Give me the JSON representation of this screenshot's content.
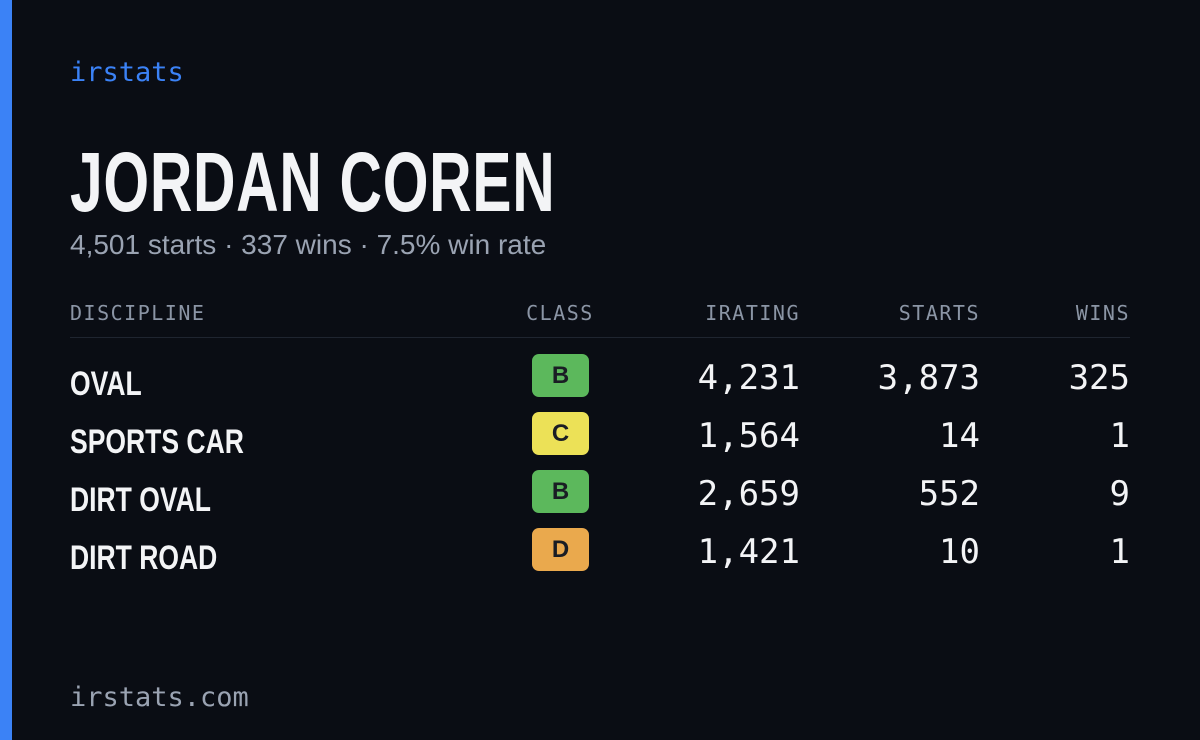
{
  "header": {
    "brand": "irstats",
    "name": "JORDAN COREN",
    "summary": "4,501 starts · 337 wins · 7.5% win rate"
  },
  "table": {
    "columns": [
      "DISCIPLINE",
      "CLASS",
      "IRATING",
      "STARTS",
      "WINS"
    ],
    "rows": [
      {
        "discipline": "OVAL",
        "class": "B",
        "class_color": "#5cb85c",
        "irating": "4,231",
        "starts": "3,873",
        "wins": "325"
      },
      {
        "discipline": "SPORTS CAR",
        "class": "C",
        "class_color": "#ece157",
        "irating": "1,564",
        "starts": "14",
        "wins": "1"
      },
      {
        "discipline": "DIRT OVAL",
        "class": "B",
        "class_color": "#5cb85c",
        "irating": "2,659",
        "starts": "552",
        "wins": "9"
      },
      {
        "discipline": "DIRT ROAD",
        "class": "D",
        "class_color": "#eaa94d",
        "irating": "1,421",
        "starts": "10",
        "wins": "1"
      }
    ]
  },
  "footer": {
    "site": "irstats.com"
  }
}
